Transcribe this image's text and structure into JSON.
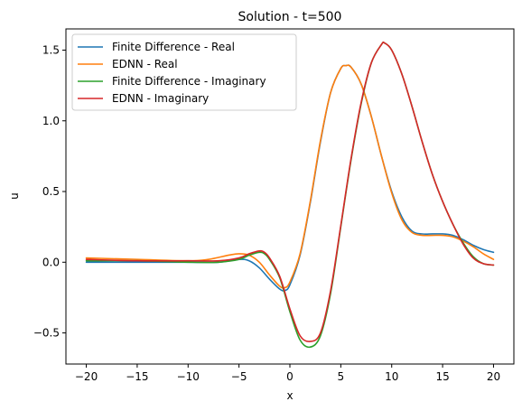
{
  "chart_data": {
    "type": "line",
    "title": "Solution - t=500",
    "xlabel": "x",
    "ylabel": "u",
    "xlim": [
      -22,
      22
    ],
    "ylim": [
      -0.72,
      1.65
    ],
    "xticks": [
      -20,
      -15,
      -10,
      -5,
      0,
      5,
      10,
      15,
      20
    ],
    "yticks": [
      -0.5,
      0.0,
      0.5,
      1.0,
      1.5
    ],
    "xtick_labels": [
      "−20",
      "−15",
      "−10",
      "−5",
      "0",
      "5",
      "10",
      "15",
      "20"
    ],
    "ytick_labels": [
      "−0.5",
      "0.0",
      "0.5",
      "1.0",
      "1.5"
    ],
    "grid": false,
    "legend_position": "top-left",
    "series": [
      {
        "name": "Finite Difference - Real",
        "color": "#1f77b4",
        "x": [
          -20,
          -15,
          -10,
          -7,
          -5,
          -4,
          -3,
          -2,
          -1,
          -0.5,
          0,
          1,
          2,
          3,
          4,
          5,
          5.5,
          6,
          7,
          8,
          9,
          10,
          11,
          12,
          13,
          14,
          15,
          16,
          17,
          18,
          19,
          20
        ],
        "y": [
          0.0,
          0.0,
          0.0,
          0.0,
          0.02,
          0.01,
          -0.04,
          -0.12,
          -0.19,
          -0.2,
          -0.16,
          0.05,
          0.42,
          0.85,
          1.2,
          1.37,
          1.39,
          1.38,
          1.26,
          1.03,
          0.75,
          0.5,
          0.32,
          0.22,
          0.2,
          0.2,
          0.2,
          0.19,
          0.16,
          0.12,
          0.09,
          0.07
        ]
      },
      {
        "name": "EDNN - Real",
        "color": "#ff7f0e",
        "x": [
          -20,
          -15,
          -10,
          -8,
          -6,
          -5,
          -4,
          -3,
          -2,
          -1,
          -0.5,
          0,
          1,
          2,
          3,
          4,
          5,
          5.5,
          6,
          7,
          8,
          9,
          10,
          11,
          12,
          13,
          14,
          15,
          16,
          17,
          18,
          19,
          20
        ],
        "y": [
          0.03,
          0.02,
          0.01,
          0.02,
          0.05,
          0.06,
          0.05,
          0.0,
          -0.09,
          -0.17,
          -0.18,
          -0.14,
          0.06,
          0.43,
          0.86,
          1.2,
          1.37,
          1.39,
          1.38,
          1.26,
          1.03,
          0.75,
          0.49,
          0.3,
          0.21,
          0.19,
          0.19,
          0.19,
          0.18,
          0.15,
          0.11,
          0.06,
          0.02
        ]
      },
      {
        "name": "Finite Difference - Imaginary",
        "color": "#2ca02c",
        "x": [
          -20,
          -15,
          -10,
          -7,
          -5,
          -4,
          -3,
          -2.5,
          -2,
          -1,
          0,
          1,
          2,
          3,
          4,
          5,
          6,
          7,
          8,
          9,
          9.3,
          10,
          11,
          12,
          13,
          14,
          15,
          16,
          17,
          18,
          19,
          20
        ],
        "y": [
          0.01,
          0.01,
          0.0,
          0.0,
          0.02,
          0.05,
          0.07,
          0.06,
          0.02,
          -0.11,
          -0.35,
          -0.55,
          -0.6,
          -0.52,
          -0.22,
          0.25,
          0.72,
          1.12,
          1.41,
          1.54,
          1.55,
          1.5,
          1.33,
          1.1,
          0.85,
          0.62,
          0.43,
          0.27,
          0.14,
          0.04,
          -0.01,
          -0.02
        ]
      },
      {
        "name": "EDNN - Imaginary",
        "color": "#d62728",
        "x": [
          -20,
          -15,
          -10,
          -7,
          -5,
          -4,
          -3,
          -2.5,
          -2,
          -1,
          0,
          1,
          2,
          3,
          4,
          5,
          6,
          7,
          8,
          9,
          9.3,
          10,
          11,
          12,
          13,
          14,
          15,
          16,
          17,
          18,
          19,
          20
        ],
        "y": [
          0.02,
          0.01,
          0.01,
          0.01,
          0.03,
          0.06,
          0.08,
          0.07,
          0.03,
          -0.1,
          -0.33,
          -0.52,
          -0.56,
          -0.5,
          -0.2,
          0.26,
          0.73,
          1.13,
          1.41,
          1.54,
          1.55,
          1.5,
          1.33,
          1.1,
          0.85,
          0.62,
          0.43,
          0.27,
          0.13,
          0.03,
          -0.01,
          -0.02
        ]
      }
    ]
  }
}
